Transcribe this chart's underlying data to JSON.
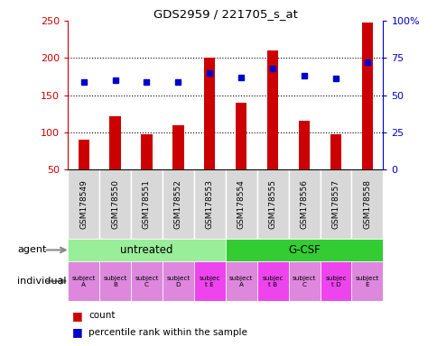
{
  "title": "GDS2959 / 221705_s_at",
  "samples": [
    "GSM178549",
    "GSM178550",
    "GSM178551",
    "GSM178552",
    "GSM178553",
    "GSM178554",
    "GSM178555",
    "GSM178556",
    "GSM178557",
    "GSM178558"
  ],
  "counts": [
    90,
    122,
    97,
    110,
    200,
    140,
    210,
    115,
    97,
    248
  ],
  "percentile_ranks": [
    59,
    60,
    59,
    59,
    65,
    62,
    68,
    63,
    61,
    72
  ],
  "ymin": 50,
  "ymax": 250,
  "yticks": [
    50,
    100,
    150,
    200,
    250
  ],
  "right_yticks": [
    0,
    25,
    50,
    75,
    100
  ],
  "right_yticklabels": [
    "0",
    "25",
    "50",
    "75",
    "100%"
  ],
  "bar_color": "#cc0000",
  "dot_color": "#0000cc",
  "agent_groups": [
    {
      "label": "untreated",
      "start": 0,
      "end": 4,
      "color": "#99ee99"
    },
    {
      "label": "G-CSF",
      "start": 5,
      "end": 9,
      "color": "#33cc33"
    }
  ],
  "individual_labels": [
    {
      "line1": "subject",
      "line2": "A",
      "col": 0,
      "highlight": false
    },
    {
      "line1": "subject",
      "line2": "B",
      "col": 1,
      "highlight": false
    },
    {
      "line1": "subject",
      "line2": "C",
      "col": 2,
      "highlight": false
    },
    {
      "line1": "subject",
      "line2": "D",
      "col": 3,
      "highlight": false
    },
    {
      "line1": "subjec",
      "line2": "t E",
      "col": 4,
      "highlight": true
    },
    {
      "line1": "subject",
      "line2": "A",
      "col": 5,
      "highlight": false
    },
    {
      "line1": "subjec",
      "line2": "t B",
      "col": 6,
      "highlight": true
    },
    {
      "line1": "subject",
      "line2": "C",
      "col": 7,
      "highlight": false
    },
    {
      "line1": "subjec",
      "line2": "t D",
      "col": 8,
      "highlight": true
    },
    {
      "line1": "subject",
      "line2": "E",
      "col": 9,
      "highlight": false
    }
  ],
  "individual_bg_normal": "#dd88dd",
  "individual_bg_highlight": "#ee44ee",
  "tick_label_color_left": "#cc0000",
  "tick_label_color_right": "#0000cc",
  "bar_width": 0.35,
  "gsm_cell_color": "#d8d8d8",
  "gsm_border_color": "#ffffff"
}
